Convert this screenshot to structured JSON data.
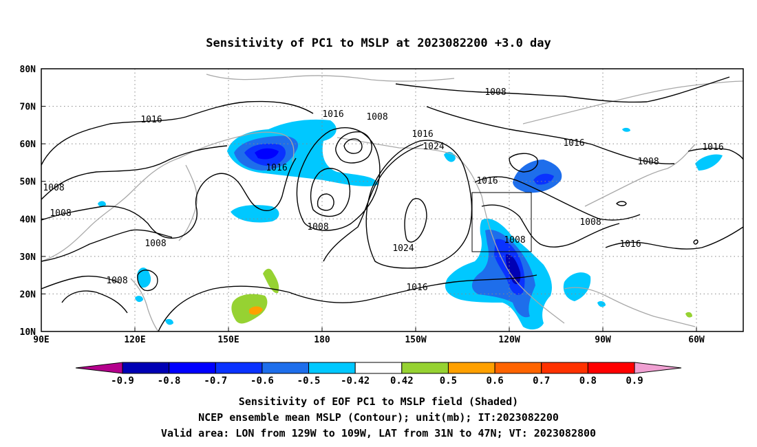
{
  "title": "Sensitivity of PC1 to MSLP at 2023082200 +3.0 day",
  "lat_labels": [
    "80N",
    "70N",
    "60N",
    "50N",
    "40N",
    "30N",
    "20N",
    "10N"
  ],
  "lon_labels": [
    "90E",
    "120E",
    "150E",
    "180",
    "150W",
    "120W",
    "90W",
    "60W"
  ],
  "contour_labels": [
    "1016",
    "1016",
    "1008",
    "1008",
    "1016",
    "1024",
    "1008",
    "1016",
    "1016",
    "1008",
    "1016",
    "1008",
    "1008",
    "1008",
    "1008",
    "1016",
    "1008",
    "1024",
    "1016",
    "1008",
    "1016"
  ],
  "colorbar": {
    "labels": [
      "-0.9",
      "-0.8",
      "-0.7",
      "-0.6",
      "-0.5",
      "-0.42",
      "0.42",
      "0.5",
      "0.6",
      "0.7",
      "0.8",
      "0.9"
    ],
    "colors": [
      "#b4008c",
      "#0000b4",
      "#0000ff",
      "#0a32ff",
      "#1e6eeb",
      "#00c8ff",
      "#ffffff",
      "#96d232",
      "#ffa000",
      "#ff6400",
      "#ff3200",
      "#ff0000",
      "#f0a0d2"
    ]
  },
  "footer": {
    "line1": "Sensitivity of EOF PC1 to MSLP field (Shaded)",
    "line2": "NCEP ensemble mean MSLP (Contour); unit(mb); IT:2023082200",
    "line3": "Valid area: LON from 129W to 109W, LAT from 31N to 47N; VT: 2023082800"
  }
}
